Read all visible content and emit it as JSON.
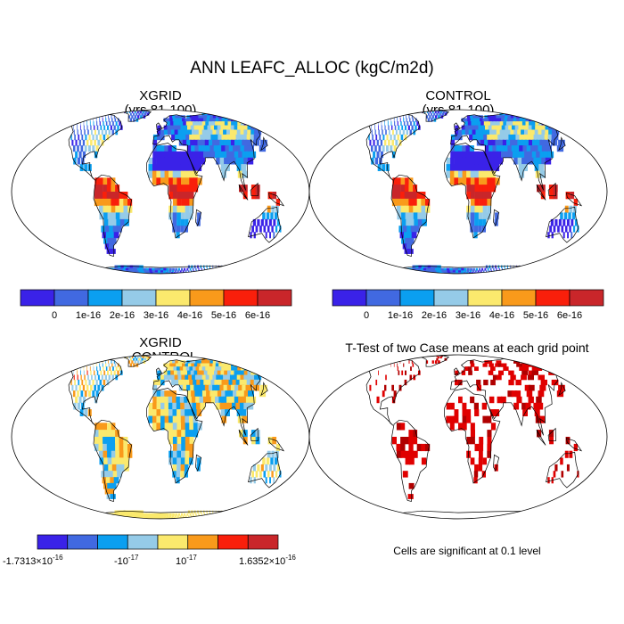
{
  "title": "ANN LEAFC_ALLOC (kgC/m2d)",
  "panels": [
    {
      "id": "xgrid",
      "title_line1": "XGRID",
      "title_line2": "(yrs 81-100)"
    },
    {
      "id": "control",
      "title_line1": "CONTROL",
      "title_line2": "(yrs 81-100)"
    },
    {
      "id": "diff",
      "title_line1": "XGRID",
      "title_line2": "- CONTROL"
    },
    {
      "id": "ttest",
      "title_line1": "T-Test of two Case means at each grid point",
      "title_line2": ""
    }
  ],
  "colorbar_top": {
    "colors": [
      "#3a22e8",
      "#4169e1",
      "#0b9ff0",
      "#95cbe8",
      "#fbe96d",
      "#f99a1b",
      "#f91f0b",
      "#c9262a"
    ],
    "labels": [
      "0",
      "1e-16",
      "2e-16",
      "3e-16",
      "4e-16",
      "5e-16",
      "6e-16"
    ]
  },
  "colorbar_diff": {
    "colors": [
      "#3a22e8",
      "#4169e1",
      "#0b9ff0",
      "#95cbe8",
      "#fbe96d",
      "#f99a1b",
      "#f91f0b",
      "#c9262a"
    ],
    "min_base": "-1.7313×10",
    "min_exp": "-16",
    "neg_base": "-10",
    "neg_exp": "-17",
    "pos_base": "10",
    "pos_exp": "-17",
    "max_base": "1.6352×10",
    "max_exp": "-16"
  },
  "significance_note": "Cells are significant at 0.1 level",
  "map_colors": {
    "ocean": "#ffffff",
    "land_base": "#4a72dc",
    "diff_base": "#fbe96d",
    "sig": "#e00000",
    "sig_dark": "#b00000"
  }
}
